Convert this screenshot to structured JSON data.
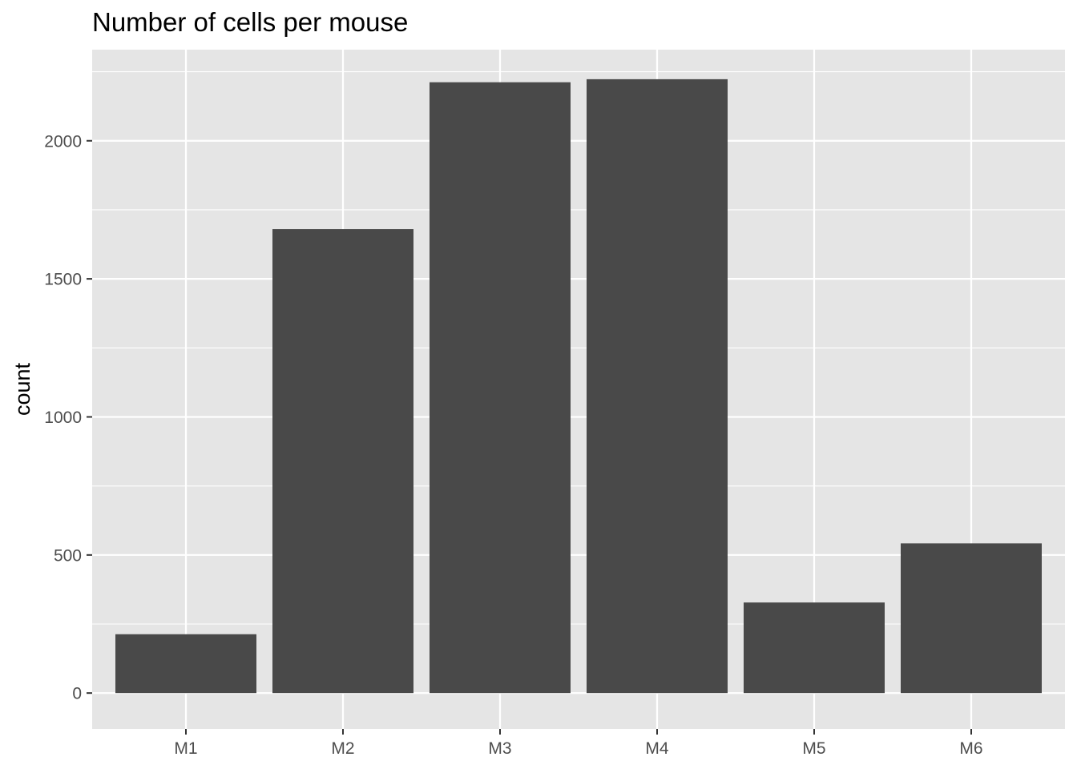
{
  "chart_data": {
    "type": "bar",
    "title": "Number of cells per mouse",
    "xlabel": "",
    "ylabel": "count",
    "categories": [
      "M1",
      "M2",
      "M3",
      "M4",
      "M5",
      "M6"
    ],
    "values": [
      213,
      1680,
      2212,
      2223,
      328,
      542
    ],
    "ylim": [
      -130,
      2330
    ],
    "yticks": [
      0,
      500,
      1000,
      1500,
      2000
    ],
    "ytick_labels": [
      "0",
      "500",
      "1000",
      "1500",
      "2000"
    ],
    "grid": true,
    "legend": "none",
    "colors": {
      "bar": "#494949",
      "panel_background": "#e5e5e5",
      "grid_line": "#ffffff",
      "tick_label": "#4d4d4d",
      "axis_tick": "#333333"
    }
  }
}
